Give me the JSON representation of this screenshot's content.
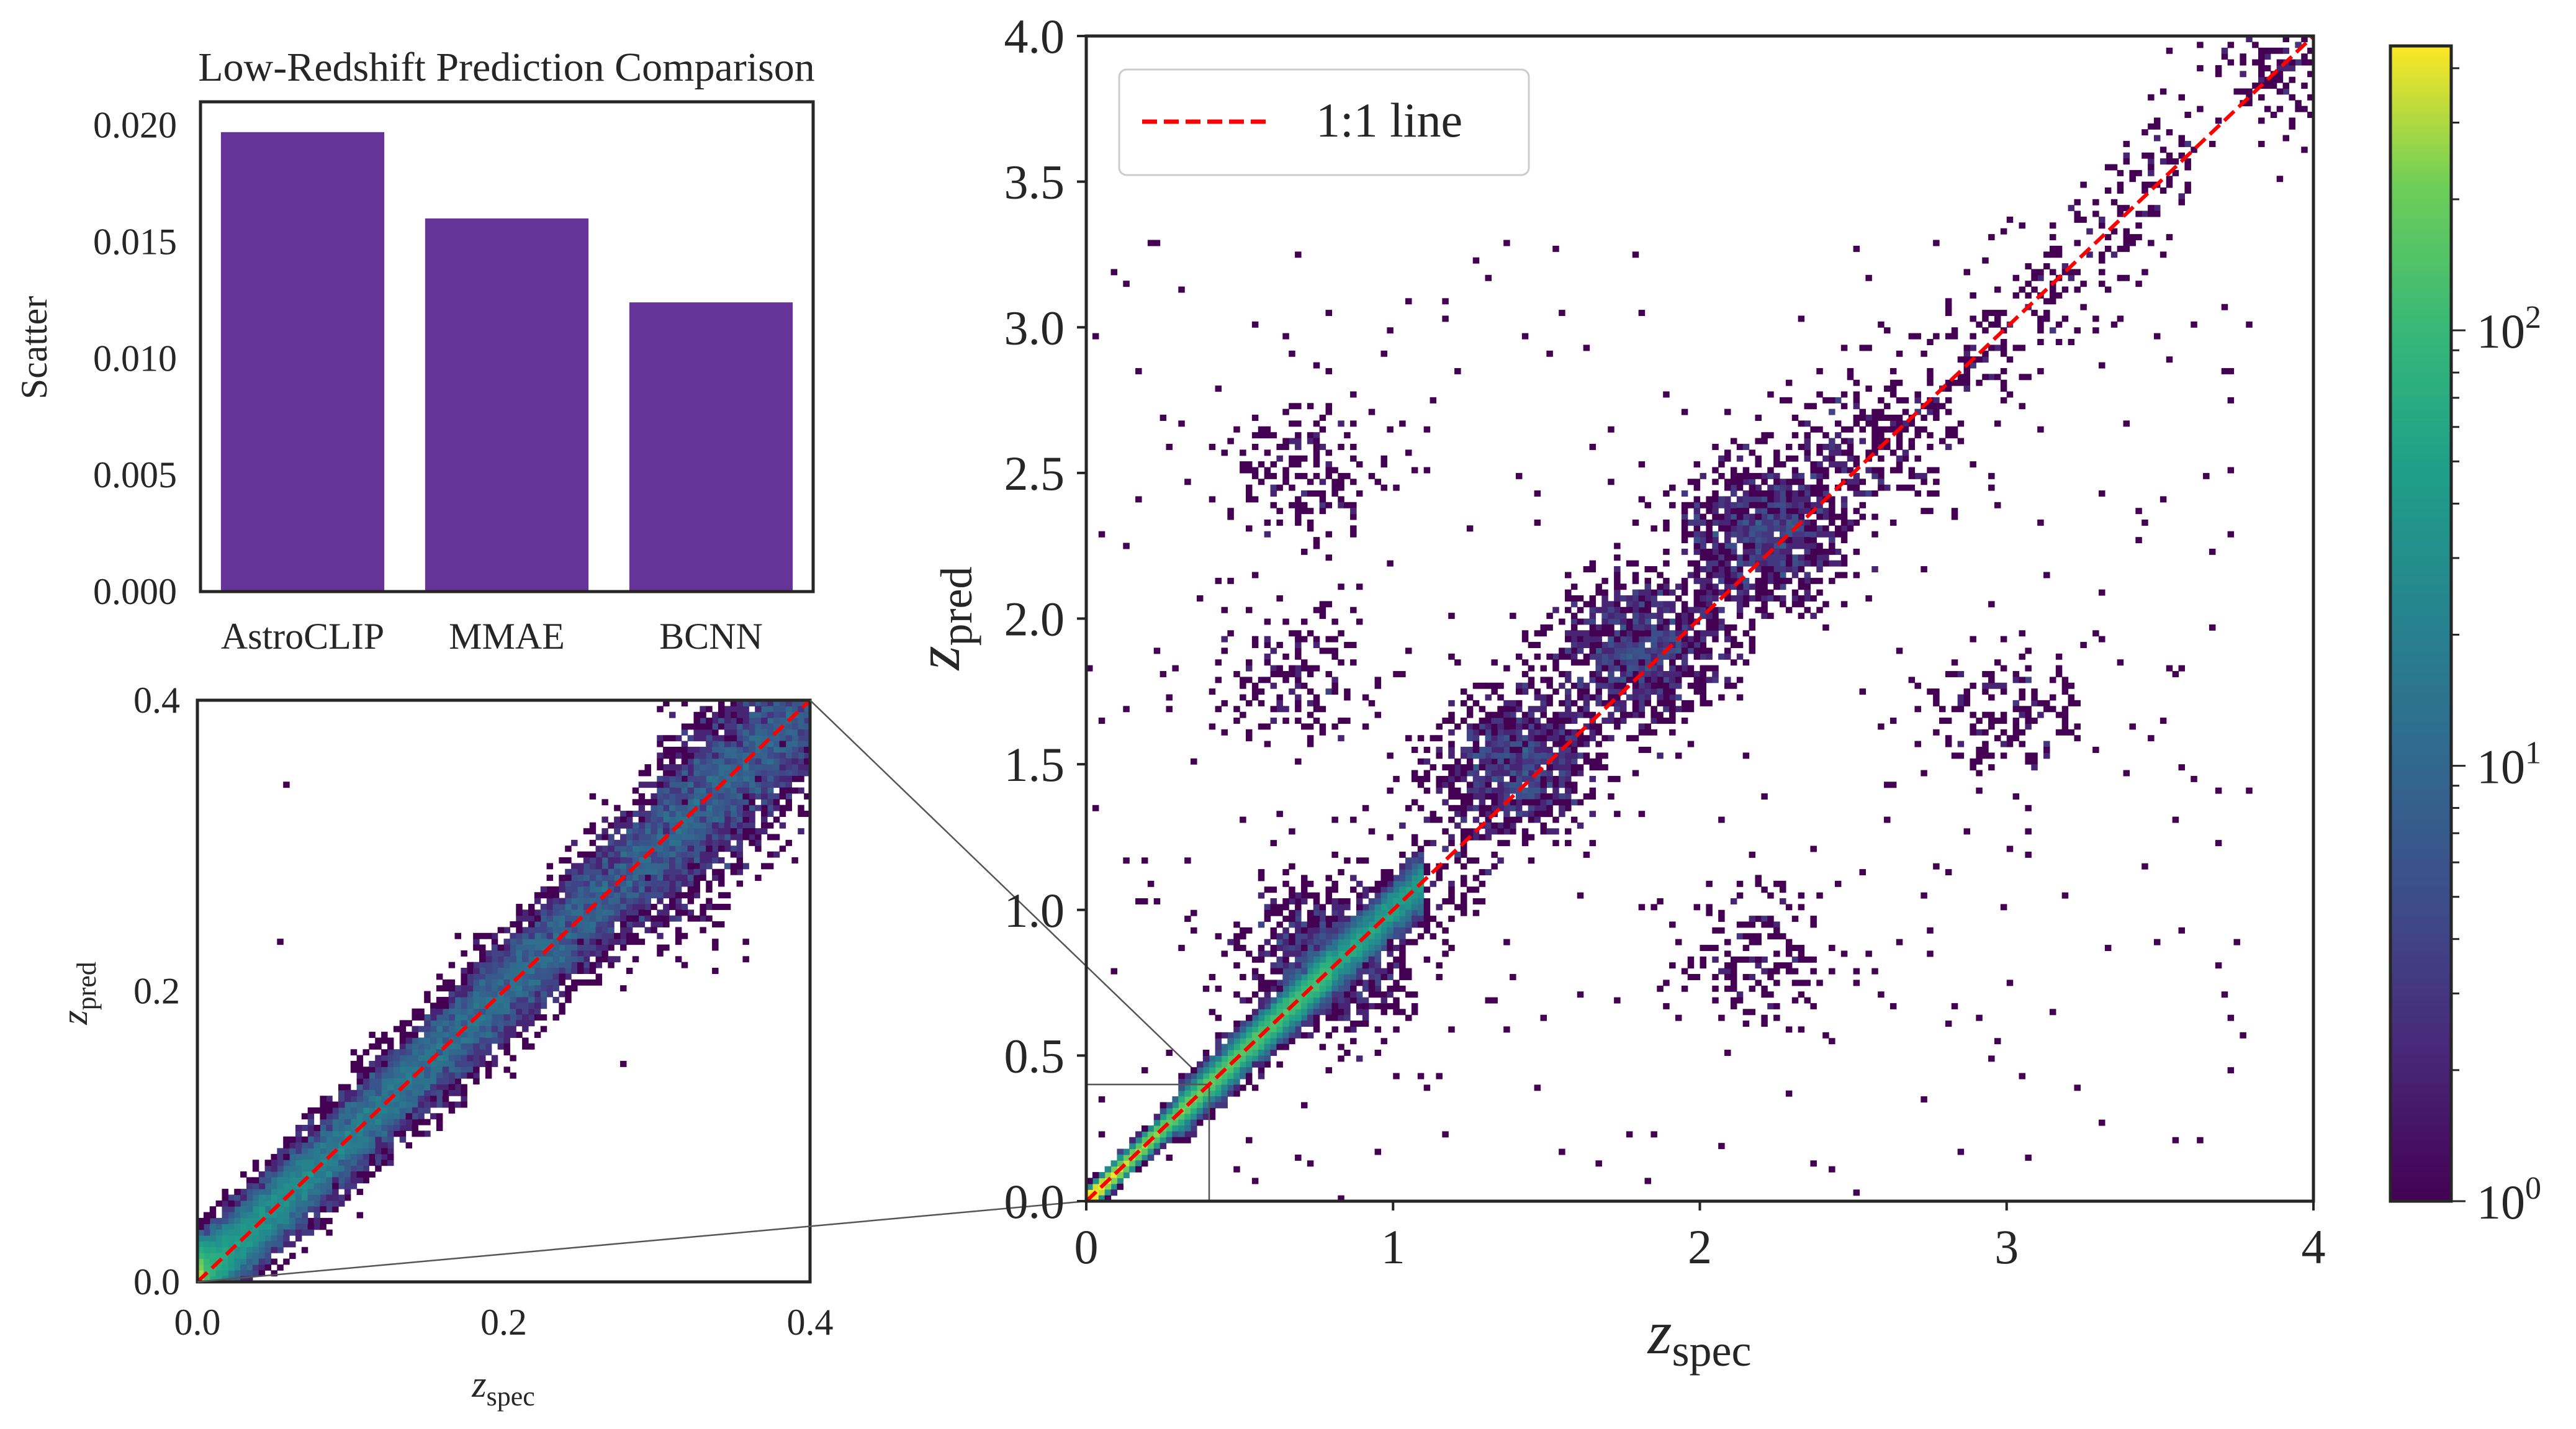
{
  "chart_data": [
    {
      "type": "bar",
      "title": "Low-Redshift Prediction Comparison",
      "xlabel": "",
      "ylabel": "Scatter",
      "categories": [
        "AstroCLIP",
        "MMAE",
        "BCNN"
      ],
      "values": [
        0.0197,
        0.016,
        0.0124
      ],
      "ylim": [
        0,
        0.021
      ],
      "yticks": [
        "0.000",
        "0.005",
        "0.010",
        "0.015",
        "0.020"
      ],
      "bar_color": "#663399",
      "grid": false
    },
    {
      "type": "heatmap",
      "subtype": "2d-histogram",
      "title": "",
      "xlabel": {
        "main": "z",
        "sub": "spec"
      },
      "ylabel": {
        "main": "z",
        "sub": "pred"
      },
      "xlim": [
        0,
        0.4
      ],
      "ylim": [
        0,
        0.4
      ],
      "xticks": [
        "0.0",
        "0.2",
        "0.4"
      ],
      "yticks": [
        "0.0",
        "0.2",
        "0.4"
      ],
      "reference_line": {
        "slope": 1,
        "color": "#ff0000",
        "style": "dashed"
      },
      "note": "zoomed inset of main panel region 0-0.4"
    },
    {
      "type": "heatmap",
      "subtype": "2d-histogram",
      "title": "",
      "xlabel": {
        "main": "z",
        "sub": "spec"
      },
      "ylabel": {
        "main": "z",
        "sub": "pred"
      },
      "xlim": [
        0,
        4
      ],
      "ylim": [
        0,
        4
      ],
      "xticks": [
        "0",
        "1",
        "2",
        "3",
        "4"
      ],
      "yticks": [
        "0.0",
        "0.5",
        "1.0",
        "1.5",
        "2.0",
        "2.5",
        "3.0",
        "3.5",
        "4.0"
      ],
      "legend": {
        "position": "top-left",
        "entries": [
          {
            "label": "1:1 line",
            "color": "#ff0000",
            "style": "dashed"
          }
        ]
      },
      "density_clusters": [
        {
          "zspec": 0.2,
          "zpred": 0.2,
          "level": "high"
        },
        {
          "zspec": 0.8,
          "zpred": 0.85,
          "level": "medium"
        },
        {
          "zspec": 1.4,
          "zpred": 1.5,
          "level": "medium"
        },
        {
          "zspec": 1.8,
          "zpred": 1.9,
          "level": "medium"
        },
        {
          "zspec": 2.2,
          "zpred": 2.3,
          "level": "medium"
        },
        {
          "zspec": 2.5,
          "zpred": 2.6,
          "level": "low"
        },
        {
          "zspec": 0.7,
          "zpred": 2.5,
          "level": "low"
        },
        {
          "zspec": 0.7,
          "zpred": 1.8,
          "level": "low"
        },
        {
          "zspec": 3.0,
          "zpred": 1.7,
          "level": "low"
        },
        {
          "zspec": 2.2,
          "zpred": 0.85,
          "level": "low"
        },
        {
          "zspec": 3.9,
          "zpred": 3.9,
          "level": "low"
        }
      ]
    },
    {
      "type": "colorbar",
      "colormap": "viridis",
      "scale": "log",
      "range": [
        1,
        450
      ],
      "ticks": [
        {
          "base": "10",
          "exp": "0"
        },
        {
          "base": "10",
          "exp": "1"
        },
        {
          "base": "10",
          "exp": "2"
        }
      ]
    }
  ]
}
